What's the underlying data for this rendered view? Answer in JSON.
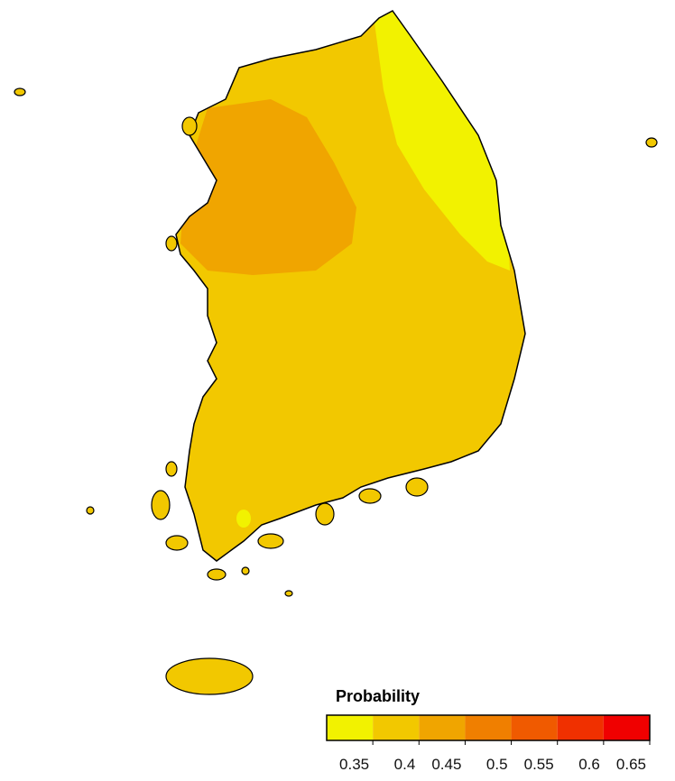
{
  "map": {
    "legend": {
      "title": "Probability",
      "bins": [
        0.3,
        0.35,
        0.4,
        0.45,
        0.5,
        0.55,
        0.6,
        0.65
      ],
      "colors": [
        "#f2f200",
        "#f2c800",
        "#f0a500",
        "#f07f00",
        "#f05a00",
        "#f03000",
        "#f00000"
      ],
      "ticks": [
        0.35,
        0.4,
        0.45,
        0.5,
        0.55,
        0.6,
        0.65
      ]
    }
  }
}
